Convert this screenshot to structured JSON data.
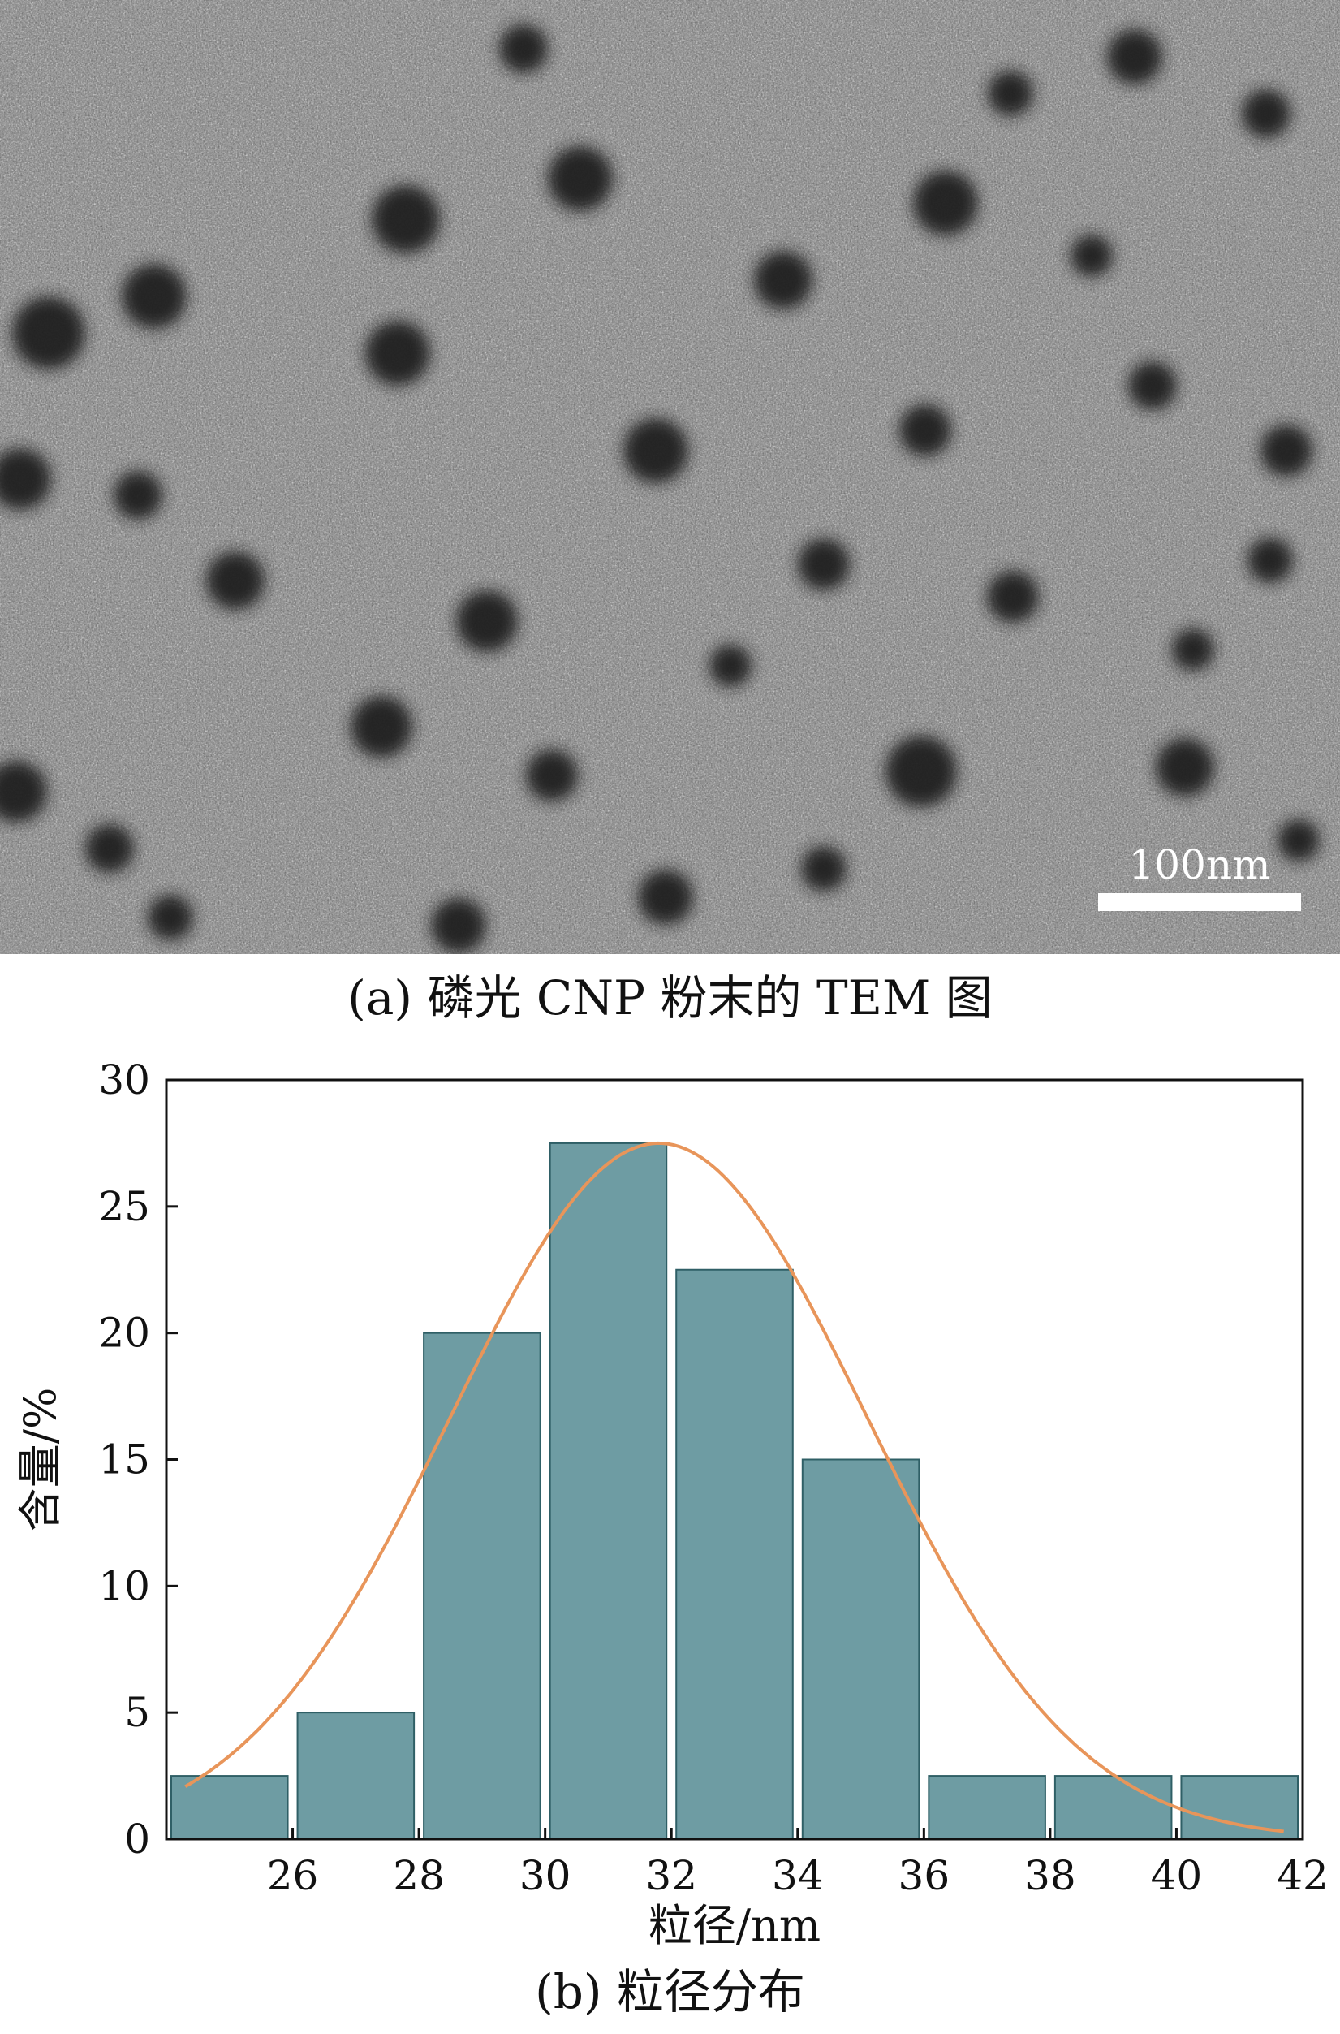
{
  "panel_a": {
    "caption": "(a) 磷光 CNP 粉末的 TEM 图",
    "scale_bar_label": "100nm"
  },
  "panel_b": {
    "caption": "(b) 粒径分布"
  },
  "chart_data": {
    "type": "bar",
    "title": "",
    "xlabel": "粒径/nm",
    "ylabel": "含量/%",
    "xlim": [
      24,
      42
    ],
    "ylim": [
      0,
      30
    ],
    "xticks": [
      26,
      28,
      30,
      32,
      34,
      36,
      38,
      40,
      42
    ],
    "yticks": [
      0,
      5,
      10,
      15,
      20,
      25,
      30
    ],
    "bin_width": 2,
    "x": [
      25,
      27,
      29,
      31,
      33,
      35,
      37,
      39,
      41
    ],
    "values": [
      2.5,
      5,
      20,
      27.5,
      22.5,
      15,
      2.5,
      2.5,
      2.5
    ],
    "fit_curve": {
      "type": "gaussian",
      "peak_x": 31.8,
      "peak_y": 27.5,
      "sigma": 3.3
    },
    "bar_color": "#6e9ca3",
    "bar_edge_color": "#2f5f66",
    "curve_color": "#e8955a",
    "grid": false,
    "legend": "none"
  }
}
